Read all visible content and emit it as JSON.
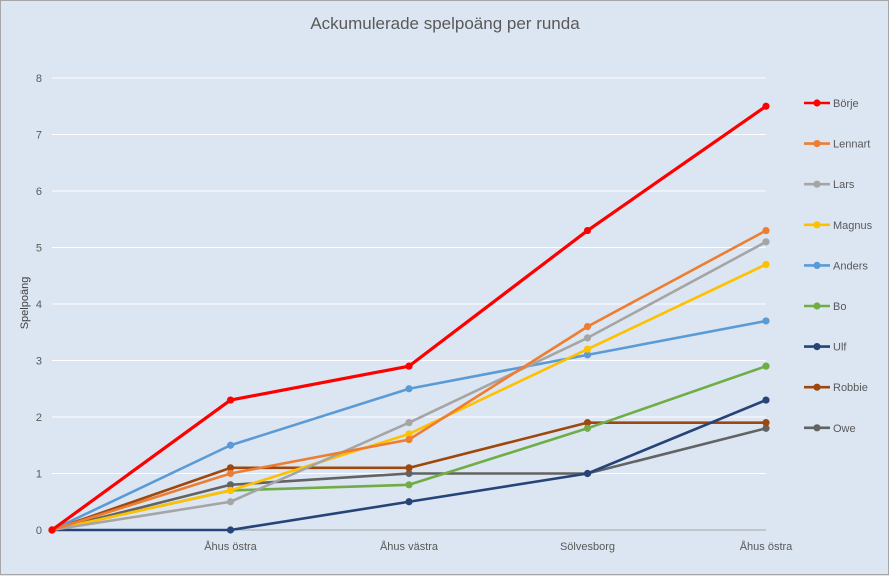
{
  "chart_data": {
    "type": "line",
    "title": "Ackumulerade spelpoäng per runda",
    "xlabel": "",
    "ylabel": "Spelpoäng",
    "ylim": [
      0,
      8
    ],
    "yticks": [
      0,
      1,
      2,
      3,
      4,
      5,
      6,
      7,
      8
    ],
    "grid": true,
    "legend_position": "right",
    "categories": [
      "",
      "Åhus östra",
      "Åhus västra",
      "Sölvesborg",
      "Åhus östra"
    ],
    "series": [
      {
        "name": "Börje",
        "color": "#ff0000",
        "values": [
          0,
          2.3,
          2.9,
          5.3,
          7.5
        ]
      },
      {
        "name": "Lennart",
        "color": "#ed7d31",
        "values": [
          0,
          1.0,
          1.6,
          3.6,
          5.3
        ]
      },
      {
        "name": "Lars",
        "color": "#a5a5a5",
        "values": [
          0,
          0.5,
          1.9,
          3.4,
          5.1
        ]
      },
      {
        "name": "Magnus",
        "color": "#ffc000",
        "values": [
          0,
          0.7,
          1.7,
          3.2,
          4.7
        ]
      },
      {
        "name": "Anders",
        "color": "#5b9bd5",
        "values": [
          0,
          1.5,
          2.5,
          3.1,
          3.7
        ]
      },
      {
        "name": "Bo",
        "color": "#70ad47",
        "values": [
          0,
          0.7,
          0.8,
          1.8,
          2.9
        ]
      },
      {
        "name": "Ulf",
        "color": "#264478",
        "values": [
          0,
          0,
          0.5,
          1.0,
          2.3
        ]
      },
      {
        "name": "Robbie",
        "color": "#9e480e",
        "values": [
          0,
          1.1,
          1.1,
          1.9,
          1.9
        ]
      },
      {
        "name": "Owe",
        "color": "#636363",
        "values": [
          0,
          0.8,
          1.0,
          1.0,
          1.8
        ]
      }
    ]
  }
}
